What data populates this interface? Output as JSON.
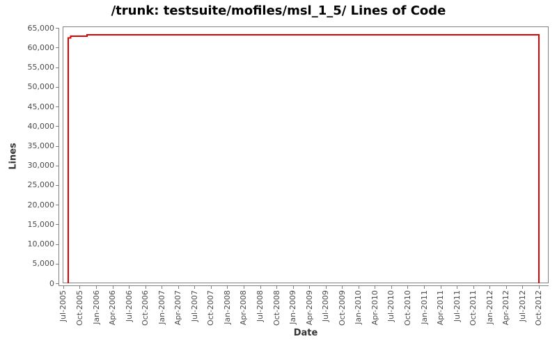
{
  "chart_data": {
    "type": "line",
    "title": "/trunk: testsuite/mofiles/msl_1_5/ Lines of Code",
    "xlabel": "Date",
    "ylabel": "Lines",
    "legend": "none",
    "grid": false,
    "x_unit": "quarters since Jul-2005",
    "xlim": [
      -0.04,
      29.6
    ],
    "ylim": [
      0,
      65400
    ],
    "x_tick_labels": [
      "Jul-2005",
      "Oct-2005",
      "Jan-2006",
      "Apr-2006",
      "Jul-2006",
      "Oct-2006",
      "Jan-2007",
      "Apr-2007",
      "Jul-2007",
      "Oct-2007",
      "Jan-2008",
      "Apr-2008",
      "Jul-2008",
      "Oct-2008",
      "Jan-2009",
      "Apr-2009",
      "Jul-2009",
      "Oct-2009",
      "Jan-2010",
      "Apr-2010",
      "Jul-2010",
      "Oct-2010",
      "Jan-2011",
      "Apr-2011",
      "Jul-2011",
      "Oct-2011",
      "Jan-2012",
      "Apr-2012",
      "Jul-2012",
      "Oct-2012"
    ],
    "y_tick_values": [
      0,
      5000,
      10000,
      15000,
      20000,
      25000,
      30000,
      35000,
      40000,
      45000,
      50000,
      55000,
      60000,
      65000
    ],
    "y_tick_labels": [
      "0",
      "5,000",
      "10,000",
      "15,000",
      "20,000",
      "25,000",
      "30,000",
      "35,000",
      "40,000",
      "45,000",
      "50,000",
      "55,000",
      "60,000",
      "65,000"
    ],
    "series": [
      {
        "name": "lines-of-code",
        "color": "#e10000",
        "step": true,
        "points": [
          {
            "date": "Aug-2005",
            "q": 0.3,
            "value": 0
          },
          {
            "date": "Aug-2005",
            "q": 0.3,
            "value": 62500
          },
          {
            "date": "Aug-2005",
            "q": 0.45,
            "value": 62500
          },
          {
            "date": "Aug-2005",
            "q": 0.45,
            "value": 62900
          },
          {
            "date": "Nov-2005",
            "q": 1.45,
            "value": 62900
          },
          {
            "date": "Nov-2005",
            "q": 1.45,
            "value": 63300
          },
          {
            "date": "Oct-2012",
            "q": 29.0,
            "value": 63300
          },
          {
            "date": "Oct-2012",
            "q": 29.0,
            "value": 0
          }
        ]
      }
    ],
    "colors": {
      "line": "#e10000",
      "axis": "#808080",
      "tick_text": "#4a4a4a",
      "title_text": "#000000"
    }
  }
}
